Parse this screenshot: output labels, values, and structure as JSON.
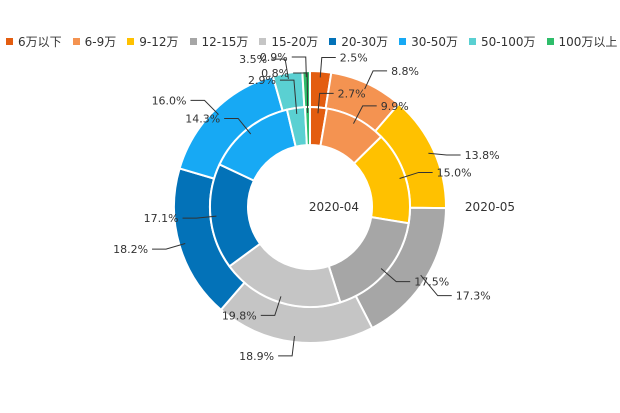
{
  "chart_data": {
    "type": "pie",
    "subtype": "nested-donut",
    "categories": [
      "6万以下",
      "6-9万",
      "9-12万",
      "12-15万",
      "15-20万",
      "20-30万",
      "30-50万",
      "50-100万",
      "100万以上"
    ],
    "colors": [
      "#e35d10",
      "#f49351",
      "#ffc100",
      "#a6a6a6",
      "#c5c5c5",
      "#0372b8",
      "#17a9f4",
      "#5ad0d2",
      "#2ebd6a"
    ],
    "series": [
      {
        "name": "2020-04",
        "ring": "inner",
        "values": [
          2.7,
          9.9,
          15.0,
          17.5,
          19.8,
          17.1,
          14.3,
          2.9,
          0.8
        ],
        "labels": [
          "2.7%",
          "9.9%",
          "15.0%",
          "17.5%",
          "19.8%",
          "17.1%",
          "14.3%",
          "2.9%",
          "0.8%"
        ]
      },
      {
        "name": "2020-05",
        "ring": "outer",
        "values": [
          2.5,
          8.8,
          13.8,
          17.3,
          18.9,
          18.2,
          16.0,
          3.5,
          0.9
        ],
        "labels": [
          "2.5%",
          "8.8%",
          "13.8%",
          "17.3%",
          "18.9%",
          "18.2%",
          "16.0%",
          "3.5%",
          "0.9%"
        ]
      }
    ],
    "legend_position": "top"
  }
}
